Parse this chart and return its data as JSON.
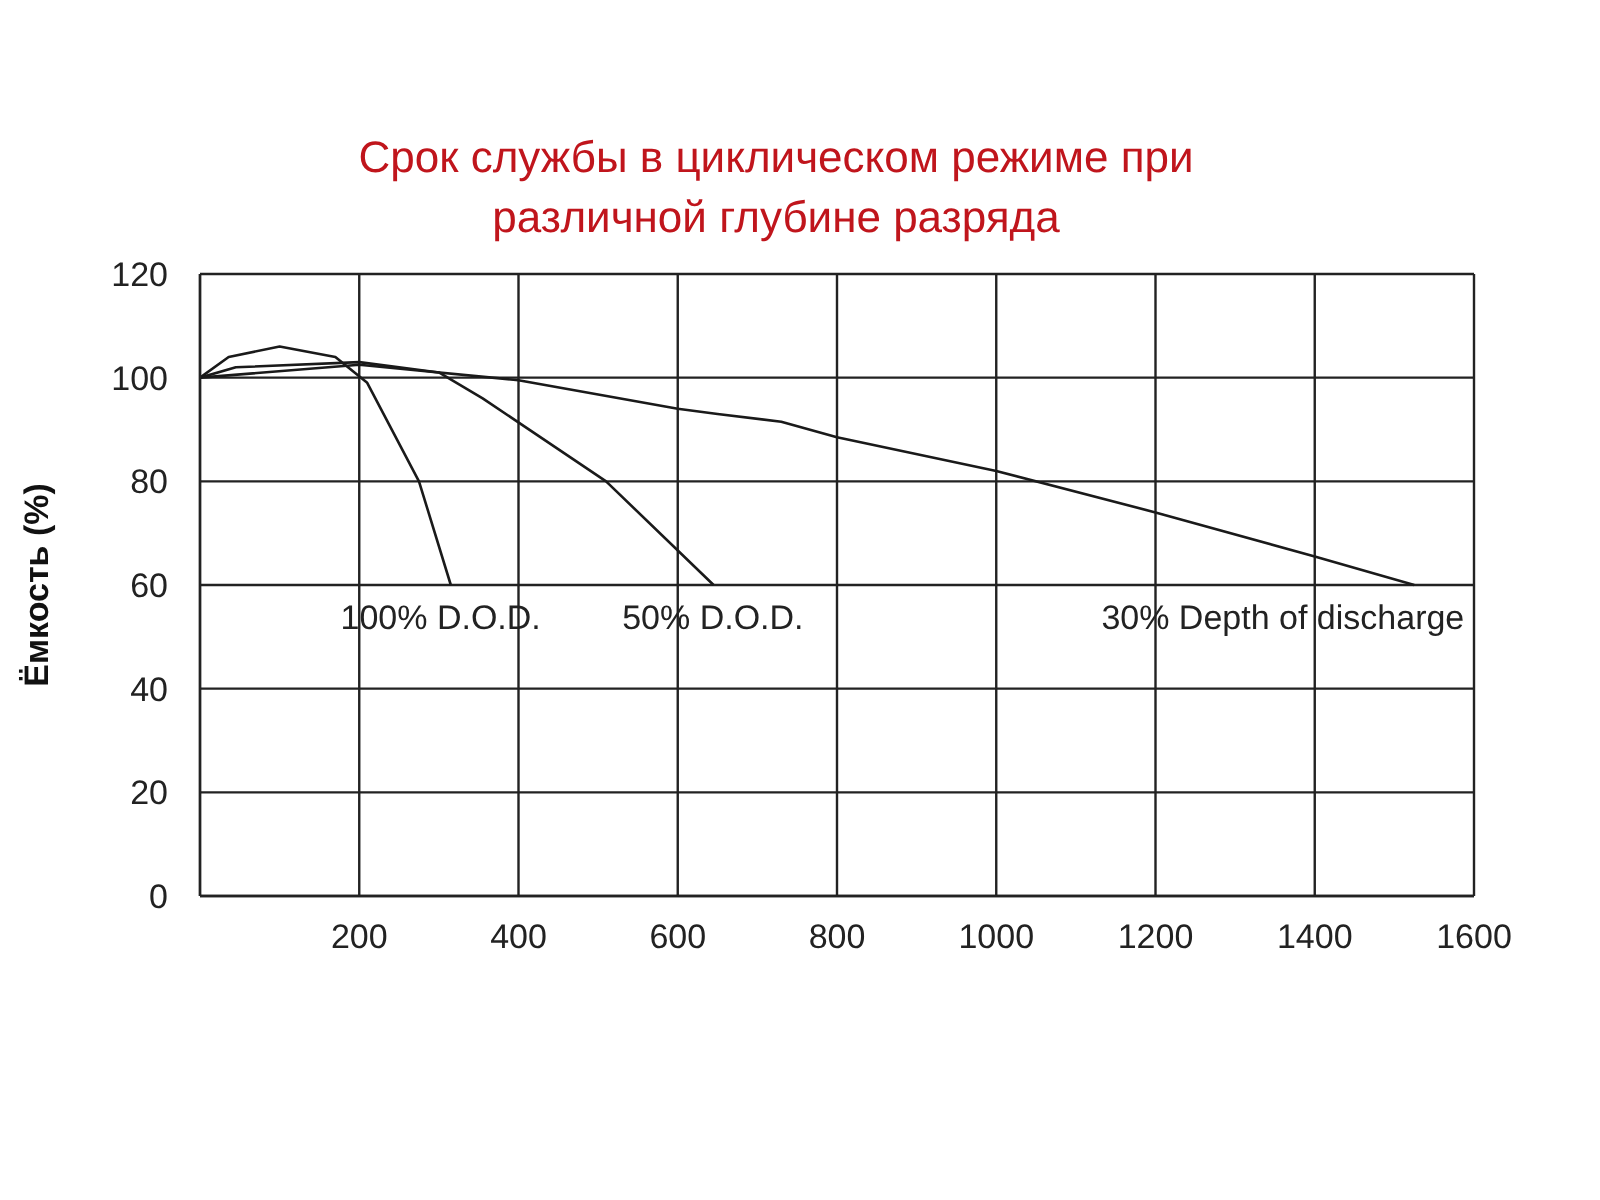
{
  "chart_data": {
    "type": "line",
    "title": "Срок службы в циклическом режиме при\nразличной глубине разряда",
    "ylabel": "Ёмкость (%)",
    "xlim": [
      0,
      1600
    ],
    "xticks": [
      200,
      400,
      600,
      800,
      1000,
      1200,
      1400,
      1600
    ],
    "ylim": [
      0,
      120
    ],
    "yticks": [
      0,
      20,
      40,
      60,
      80,
      100,
      120
    ],
    "grid": true,
    "marker": "none",
    "line_style": "solid",
    "series": [
      {
        "name": "100% D.O.D.",
        "color": "#1a1a1a",
        "x": [
          0,
          36,
          100,
          170,
          210,
          275,
          315
        ],
        "values": [
          100,
          104,
          106,
          104,
          99,
          80,
          60
        ]
      },
      {
        "name": "50% D.O.D.",
        "color": "#1a1a1a",
        "x": [
          0,
          45,
          200,
          300,
          355,
          510,
          645
        ],
        "values": [
          100,
          102,
          103,
          101,
          96,
          80,
          60
        ]
      },
      {
        "name": "30% Depth of discharge",
        "color": "#1a1a1a",
        "x": [
          0,
          200,
          400,
          600,
          650,
          730,
          800,
          1000,
          1200,
          1400,
          1525
        ],
        "values": [
          100,
          102.5,
          99.5,
          94,
          93,
          91.5,
          88.5,
          82,
          74,
          65.5,
          60
        ]
      }
    ]
  }
}
